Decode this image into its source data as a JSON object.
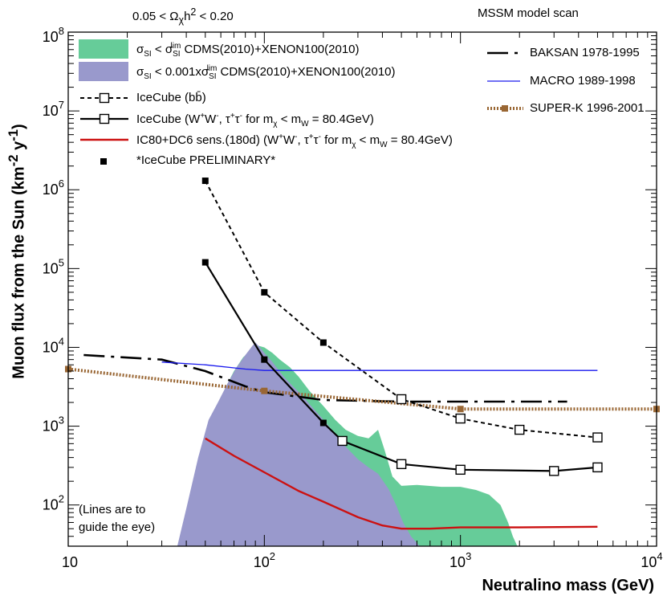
{
  "header": {
    "left": "0.05 < Ωχh² < 0.20",
    "right": "MSSM model scan"
  },
  "chart_data": {
    "type": "line",
    "xscale": "log",
    "yscale": "log",
    "xlim": [
      10,
      10000
    ],
    "ylim": [
      30,
      100000000
    ],
    "xlabel": "Neutralino mass (GeV)",
    "ylabel": "Muon flux from the Sun (km⁻² y⁻¹)",
    "x_ticks": [
      {
        "base": "10",
        "exp": ""
      },
      {
        "base": "10",
        "exp": "2"
      },
      {
        "base": "10",
        "exp": "3"
      },
      {
        "base": "10",
        "exp": "4"
      }
    ],
    "y_ticks": [
      {
        "base": "10",
        "exp": "2"
      },
      {
        "base": "10",
        "exp": "3"
      },
      {
        "base": "10",
        "exp": "4"
      },
      {
        "base": "10",
        "exp": "5"
      },
      {
        "base": "10",
        "exp": "6"
      },
      {
        "base": "10",
        "exp": "7"
      },
      {
        "base": "10",
        "exp": "8"
      }
    ],
    "note": [
      "(Lines are to",
      "guide the eye)"
    ],
    "legend_left": [
      {
        "key": "green",
        "text": "σSI < σSIlim CDMS(2010)+XENON100(2010)"
      },
      {
        "key": "purple",
        "text": "σSI < 0.001xσSIlim CDMS(2010)+XENON100(2010)"
      },
      {
        "key": "bb",
        "text": "IceCube (bb̄)"
      },
      {
        "key": "ww",
        "text": "IceCube (W⁺W⁻, τ⁺τ⁻ for mχ < mW = 80.4GeV)"
      },
      {
        "key": "ic80",
        "text": "IC80+DC6 sens.(180d) (W⁺W⁻, τ⁺τ⁻ for mχ < mW = 80.4GeV)"
      },
      {
        "key": "prelim",
        "text": "*IceCube PRELIMINARY*"
      }
    ],
    "legend_right": [
      {
        "key": "baksan",
        "text": "BAKSAN 1978-1995"
      },
      {
        "key": "macro",
        "text": "MACRO 1989-1998"
      },
      {
        "key": "superk",
        "text": "SUPER-K 1996-2001"
      }
    ],
    "colors": {
      "green": "#66cc99",
      "purple": "#9999cc",
      "red": "#cc1111",
      "blue": "#1a1aee",
      "brown": "#996633",
      "black": "#000000"
    },
    "bands": [
      {
        "name": "green-band",
        "upper": [
          [
            42,
            30
          ],
          [
            50,
            400
          ],
          [
            56,
            1500
          ],
          [
            63,
            3000
          ],
          [
            70,
            5000
          ],
          [
            78,
            7500
          ],
          [
            87,
            9500
          ],
          [
            93,
            10500
          ],
          [
            100,
            10000
          ],
          [
            110,
            8500
          ],
          [
            120,
            7000
          ],
          [
            135,
            5600
          ],
          [
            150,
            4200
          ],
          [
            170,
            2800
          ],
          [
            200,
            1800
          ],
          [
            230,
            1200
          ],
          [
            260,
            900
          ],
          [
            300,
            750
          ],
          [
            340,
            700
          ],
          [
            380,
            900
          ],
          [
            410,
            500
          ],
          [
            450,
            230
          ],
          [
            500,
            175
          ],
          [
            600,
            180
          ],
          [
            800,
            170
          ],
          [
            1000,
            170
          ],
          [
            1200,
            155
          ],
          [
            1400,
            135
          ],
          [
            1600,
            100
          ],
          [
            1750,
            60
          ],
          [
            1850,
            40
          ],
          [
            1950,
            30
          ]
        ],
        "lower": [
          [
            1950,
            30
          ],
          [
            42,
            30
          ]
        ]
      },
      {
        "name": "purple-band",
        "upper": [
          [
            36,
            30
          ],
          [
            40,
            90
          ],
          [
            46,
            400
          ],
          [
            52,
            1200
          ],
          [
            58,
            2000
          ],
          [
            65,
            3500
          ],
          [
            72,
            5500
          ],
          [
            80,
            8000
          ],
          [
            87,
            10500
          ],
          [
            90,
            11500
          ],
          [
            95,
            10000
          ],
          [
            100,
            8500
          ],
          [
            110,
            6500
          ],
          [
            125,
            4300
          ],
          [
            140,
            3200
          ],
          [
            155,
            2500
          ],
          [
            170,
            1900
          ],
          [
            185,
            1500
          ],
          [
            200,
            1200
          ],
          [
            230,
            800
          ],
          [
            260,
            550
          ],
          [
            300,
            380
          ],
          [
            340,
            300
          ],
          [
            380,
            250
          ],
          [
            430,
            160
          ],
          [
            470,
            100
          ],
          [
            510,
            60
          ],
          [
            560,
            40
          ],
          [
            620,
            30
          ]
        ],
        "lower": [
          [
            620,
            30
          ],
          [
            36,
            30
          ]
        ]
      }
    ],
    "series": [
      {
        "name": "BAKSAN 1978-1995",
        "style": "dashdot",
        "color": "#000000",
        "points": [
          [
            12,
            8000
          ],
          [
            30,
            7000
          ],
          [
            50,
            5000
          ],
          [
            80,
            3200
          ],
          [
            100,
            2700
          ],
          [
            200,
            2150
          ],
          [
            500,
            2050
          ],
          [
            1000,
            2050
          ],
          [
            3500,
            2050
          ]
        ]
      },
      {
        "name": "MACRO 1989-1998",
        "style": "solid-thin",
        "color": "#1a1aee",
        "points": [
          [
            30,
            6500
          ],
          [
            50,
            6000
          ],
          [
            80,
            5300
          ],
          [
            100,
            5100
          ],
          [
            200,
            5100
          ],
          [
            500,
            5100
          ],
          [
            1000,
            5100
          ],
          [
            5000,
            5100
          ]
        ]
      },
      {
        "name": "SUPER-K 1996-2001",
        "style": "dotted",
        "color": "#996633",
        "points": [
          [
            10,
            5300
          ],
          [
            100,
            2800
          ],
          [
            1000,
            1650
          ],
          [
            10000,
            1650
          ]
        ],
        "markers": [
          [
            10,
            5300
          ],
          [
            100,
            2800
          ],
          [
            1000,
            1650
          ],
          [
            10000,
            1650
          ]
        ]
      },
      {
        "name": "IceCube (bb̄)",
        "style": "dashed",
        "color": "#000000",
        "points": [
          [
            50,
            1300000
          ],
          [
            100,
            50000
          ],
          [
            200,
            11500
          ],
          [
            500,
            2200
          ],
          [
            1000,
            1250
          ],
          [
            2000,
            900
          ],
          [
            5000,
            720
          ]
        ],
        "filled_markers": [
          [
            50,
            1300000
          ],
          [
            100,
            50000
          ],
          [
            200,
            11500
          ]
        ],
        "open_markers": [
          [
            500,
            2200
          ],
          [
            1000,
            1250
          ],
          [
            2000,
            900
          ],
          [
            5000,
            720
          ]
        ]
      },
      {
        "name": "IceCube (W⁺W⁻, τ⁺τ⁻)",
        "style": "solid",
        "color": "#000000",
        "points": [
          [
            50,
            120000
          ],
          [
            100,
            7000
          ],
          [
            200,
            1100
          ],
          [
            250,
            650
          ],
          [
            500,
            330
          ],
          [
            1000,
            280
          ],
          [
            3000,
            270
          ],
          [
            5000,
            300
          ]
        ],
        "filled_markers": [
          [
            50,
            120000
          ],
          [
            100,
            7000
          ],
          [
            200,
            1100
          ]
        ],
        "open_markers": [
          [
            250,
            650
          ],
          [
            500,
            330
          ],
          [
            1000,
            280
          ],
          [
            3000,
            270
          ],
          [
            5000,
            300
          ]
        ]
      },
      {
        "name": "IC80+DC6 sens.(180d)",
        "style": "solid-red",
        "color": "#cc1111",
        "points": [
          [
            50,
            700
          ],
          [
            70,
            420
          ],
          [
            100,
            260
          ],
          [
            150,
            150
          ],
          [
            200,
            110
          ],
          [
            300,
            70
          ],
          [
            400,
            55
          ],
          [
            500,
            50
          ],
          [
            700,
            50
          ],
          [
            1000,
            52
          ],
          [
            2000,
            52
          ],
          [
            5000,
            53
          ]
        ]
      }
    ]
  }
}
